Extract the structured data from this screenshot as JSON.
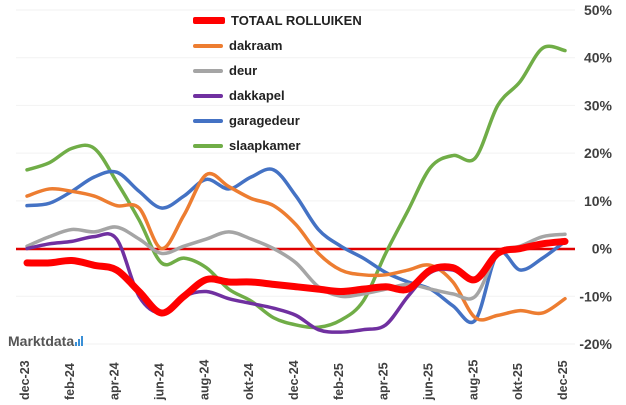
{
  "chart_data": {
    "type": "line",
    "title": "",
    "xlabel": "",
    "ylabel": "",
    "x": [
      "dec-23",
      "jan-24",
      "feb-24",
      "mrt-24",
      "apr-24",
      "mei-24",
      "jun-24",
      "jul-24",
      "aug-24",
      "sep-24",
      "okt-24",
      "nov-24",
      "dec-24",
      "jan-25",
      "feb-25",
      "mrt-25",
      "apr-25",
      "mei-25",
      "jun-25",
      "jul-25",
      "aug-25",
      "sep-25",
      "okt-25",
      "nov-25",
      "dec-25"
    ],
    "x_tick_labels": [
      "dec-23",
      "feb-24",
      "apr-24",
      "jun-24",
      "aug-24",
      "okt-24",
      "dec-24",
      "feb-25",
      "apr-25",
      "jun-25",
      "aug-25",
      "okt-25",
      "dec-25"
    ],
    "y_tick_labels": [
      "50%",
      "40%",
      "30%",
      "20%",
      "10%",
      "0%",
      "-10%",
      "-20%"
    ],
    "y_ticks": [
      50,
      40,
      30,
      20,
      10,
      0,
      -10,
      -20
    ],
    "ylim": [
      -20,
      50
    ],
    "y_axis_side": "right",
    "grid": true,
    "legend_position": "top-center",
    "series": [
      {
        "name": "TOTAAL ROLLUIKEN",
        "color": "#ff0000",
        "values": [
          -3,
          -3,
          -2.5,
          -3.5,
          -4.5,
          -9,
          -13.5,
          -10,
          -6.5,
          -7,
          -7,
          -7.5,
          -8,
          -8.5,
          -9,
          -8.5,
          -8,
          -8.5,
          -4.5,
          -4,
          -6.5,
          -1,
          0,
          1,
          1.5
        ]
      },
      {
        "name": "dakraam",
        "color": "#ed7d31",
        "values": [
          11,
          12.5,
          12,
          11,
          9,
          8.5,
          0,
          7,
          15.5,
          13,
          10.5,
          9,
          5,
          -1,
          -4.5,
          -5.5,
          -5.5,
          -4.5,
          -3.5,
          -7,
          -14.5,
          -14,
          -13,
          -13.5,
          -10.5
        ]
      },
      {
        "name": "deur",
        "color": "#a5a5a5",
        "values": [
          0.5,
          2.5,
          4,
          3.5,
          4.5,
          2,
          -1,
          0.5,
          2,
          3.5,
          2,
          0,
          -3,
          -8,
          -10,
          -9.5,
          -8.5,
          -7.5,
          -8.5,
          -9.5,
          -10,
          -1,
          0.5,
          2.5,
          3
        ]
      },
      {
        "name": "dakkapel",
        "color": "#7030a0",
        "values": [
          0,
          1,
          1.5,
          2.5,
          2,
          -10,
          -13.5,
          -10,
          -9,
          -10.5,
          -11.5,
          -12.5,
          -14,
          -17,
          -17.5,
          -17,
          -16,
          -10,
          -5,
          -4.5,
          -6.5,
          -1,
          0,
          1,
          1.5
        ]
      },
      {
        "name": "garagedeur",
        "color": "#4472c4",
        "values": [
          9,
          9.5,
          12,
          15,
          16,
          12,
          8.5,
          11,
          14.5,
          12.5,
          15,
          16.5,
          11,
          4,
          0.5,
          -2,
          -5,
          -7,
          -8.5,
          -12,
          -15,
          -1,
          -4.5,
          -2,
          1.5
        ]
      },
      {
        "name": "slaapkamer",
        "color": "#70ad47",
        "values": [
          16.5,
          18,
          21,
          21,
          14,
          6,
          -3,
          -2,
          -4,
          -8.5,
          -11,
          -14.5,
          -16,
          -16.5,
          -15,
          -11,
          -1,
          8,
          17,
          19.5,
          19,
          30,
          35,
          42,
          41.5
        ]
      }
    ]
  },
  "legend": [
    "TOTAAL ROLLUIKEN",
    "dakraam",
    "deur",
    "dakkapel",
    "garagedeur",
    "slaapkamer"
  ],
  "logo": {
    "text": "Marktdata"
  }
}
